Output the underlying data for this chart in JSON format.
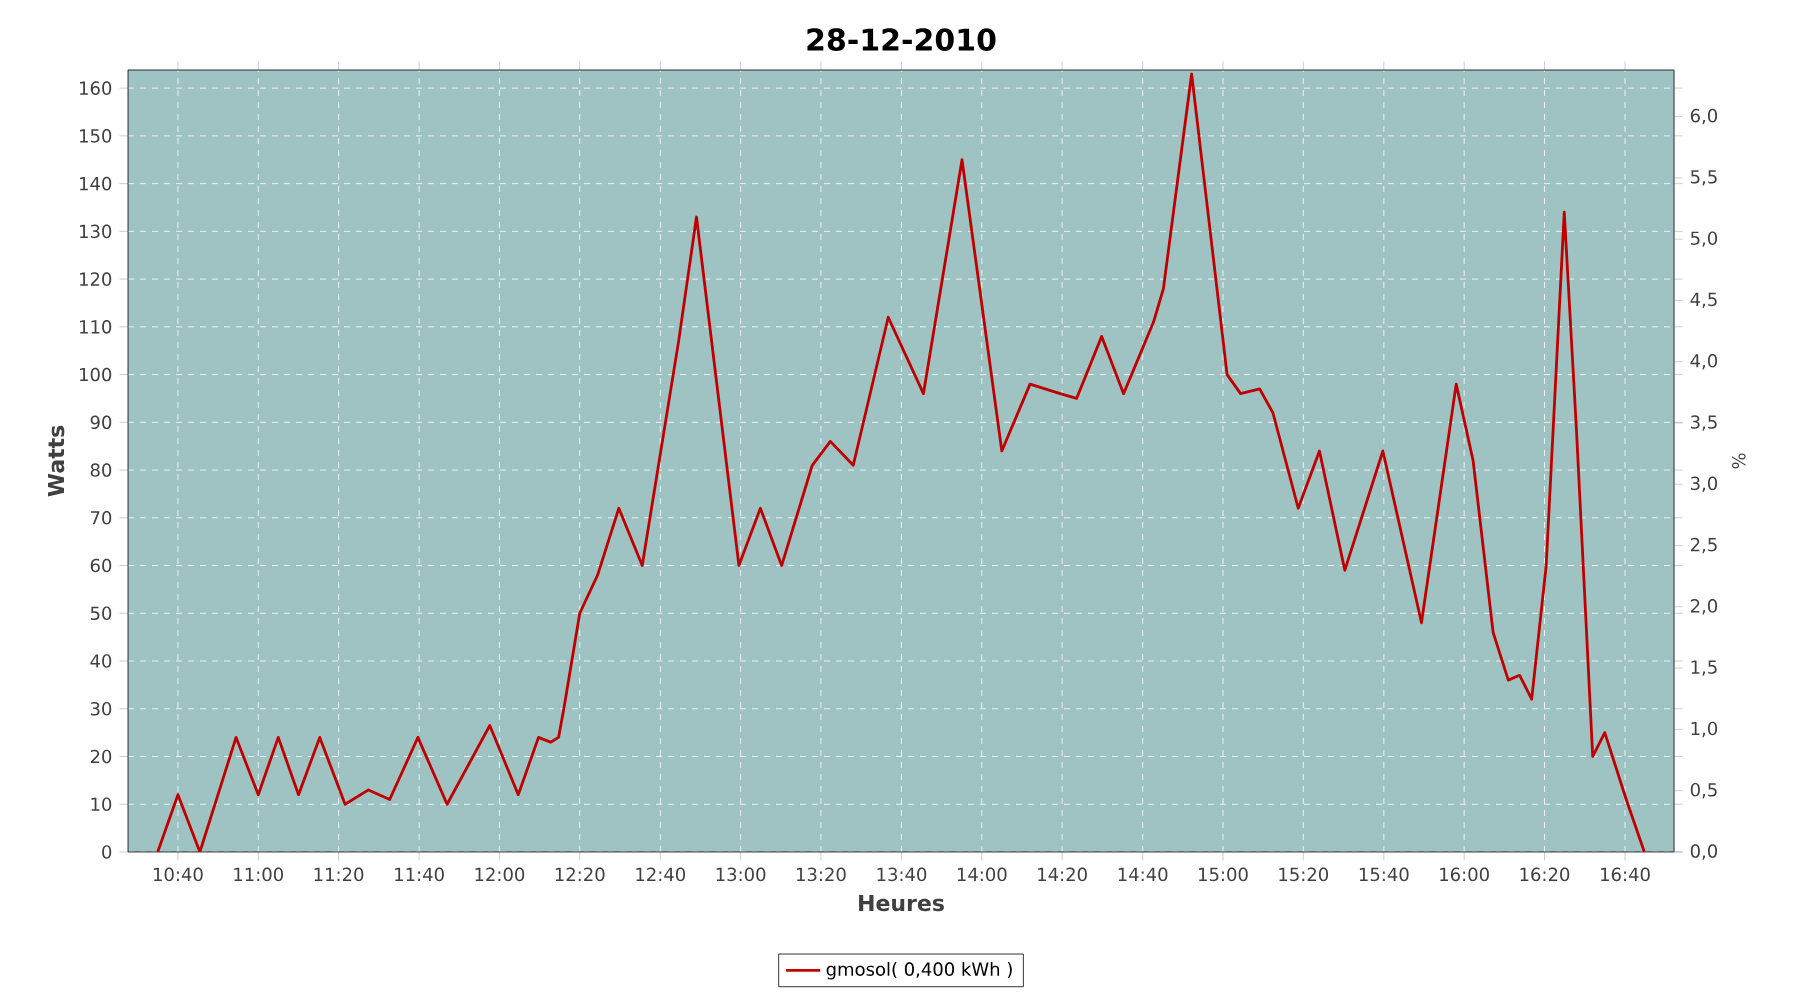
{
  "chart_data": {
    "type": "line",
    "title": "28-12-2010",
    "xlabel": "Heures",
    "ylabel": "Watts",
    "y2label": "%",
    "x": [
      10.583,
      10.667,
      10.758,
      10.908,
      11.0,
      11.083,
      11.167,
      11.255,
      11.36,
      11.457,
      11.545,
      11.662,
      11.783,
      11.96,
      12.078,
      12.162,
      12.212,
      12.245,
      12.267,
      12.333,
      12.407,
      12.495,
      12.592,
      12.743,
      12.817,
      12.993,
      13.082,
      13.17,
      13.297,
      13.372,
      13.467,
      13.612,
      13.758,
      13.918,
      14.083,
      14.2,
      14.325,
      14.393,
      14.497,
      14.588,
      14.712,
      14.753,
      14.87,
      15.017,
      15.073,
      15.152,
      15.207,
      15.312,
      15.4,
      15.505,
      15.663,
      15.823,
      15.967,
      16.037,
      16.12,
      16.183,
      16.23,
      16.28,
      16.34,
      16.415,
      16.465,
      16.533,
      16.583,
      16.672,
      16.747
    ],
    "series": [
      {
        "name": "gmosol( 0,400 kWh )",
        "color": "#c00000",
        "values": [
          0,
          12,
          0,
          24,
          12,
          24,
          12,
          24,
          10,
          13,
          11,
          24,
          10,
          26.5,
          12,
          24,
          23,
          24,
          30,
          50,
          58,
          72,
          60,
          107,
          133,
          60,
          72,
          60,
          81,
          86,
          81,
          112,
          96,
          145,
          84,
          98,
          96,
          95,
          108,
          96,
          111,
          118,
          163,
          100,
          96,
          97,
          92,
          72,
          84,
          59,
          84,
          48,
          98,
          82,
          46,
          36,
          37,
          32,
          60,
          134,
          89,
          20,
          25,
          11,
          0
        ]
      }
    ],
    "xlim": [
      10.46,
      16.87
    ],
    "ylim": [
      0,
      163.8
    ],
    "y2lim": [
      0,
      6.38
    ],
    "xticks": [
      {
        "value": 10.667,
        "label": "10:40"
      },
      {
        "value": 11.0,
        "label": "11:00"
      },
      {
        "value": 11.333,
        "label": "11:20"
      },
      {
        "value": 11.667,
        "label": "11:40"
      },
      {
        "value": 12.0,
        "label": "12:00"
      },
      {
        "value": 12.333,
        "label": "12:20"
      },
      {
        "value": 12.667,
        "label": "12:40"
      },
      {
        "value": 13.0,
        "label": "13:00"
      },
      {
        "value": 13.333,
        "label": "13:20"
      },
      {
        "value": 13.667,
        "label": "13:40"
      },
      {
        "value": 14.0,
        "label": "14:00"
      },
      {
        "value": 14.333,
        "label": "14:20"
      },
      {
        "value": 14.667,
        "label": "14:40"
      },
      {
        "value": 15.0,
        "label": "15:00"
      },
      {
        "value": 15.333,
        "label": "15:20"
      },
      {
        "value": 15.667,
        "label": "15:40"
      },
      {
        "value": 16.0,
        "label": "16:00"
      },
      {
        "value": 16.333,
        "label": "16:20"
      },
      {
        "value": 16.667,
        "label": "16:40"
      }
    ],
    "yticks": [
      0,
      10,
      20,
      30,
      40,
      50,
      60,
      70,
      80,
      90,
      100,
      110,
      120,
      130,
      140,
      150,
      160
    ],
    "y2ticks": [
      {
        "value": 0,
        "label": "0,0"
      },
      {
        "value": 0.5,
        "label": "0,5"
      },
      {
        "value": 1.0,
        "label": "1,0"
      },
      {
        "value": 1.5,
        "label": "1,5"
      },
      {
        "value": 2.0,
        "label": "2,0"
      },
      {
        "value": 2.5,
        "label": "2,5"
      },
      {
        "value": 3.0,
        "label": "3,0"
      },
      {
        "value": 3.5,
        "label": "3,5"
      },
      {
        "value": 4.0,
        "label": "4,0"
      },
      {
        "value": 4.5,
        "label": "4,5"
      },
      {
        "value": 5.0,
        "label": "5,0"
      },
      {
        "value": 5.5,
        "label": "5,5"
      },
      {
        "value": 6.0,
        "label": "6,0"
      }
    ],
    "grid": true,
    "legend": "bottom",
    "marker": "none",
    "line_style": "solid"
  }
}
